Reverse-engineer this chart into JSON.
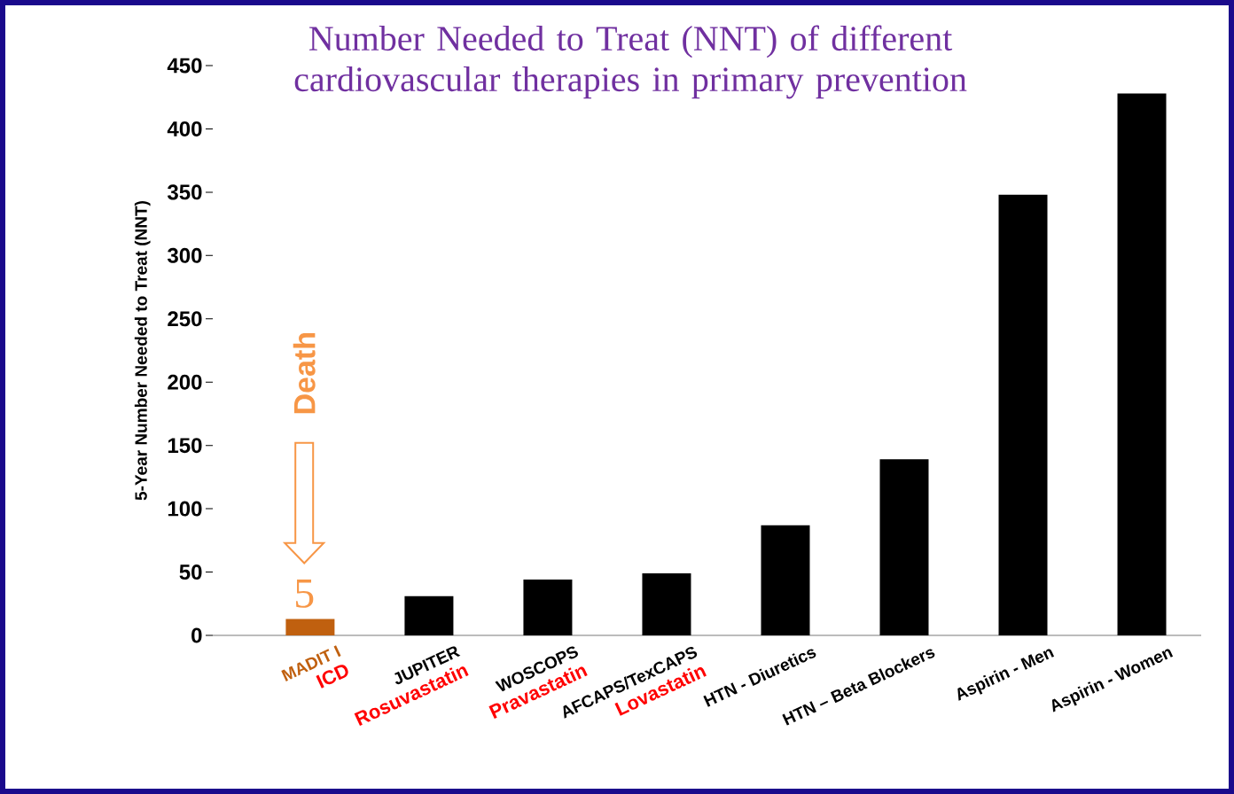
{
  "chart_data": {
    "type": "bar",
    "title": "Number Needed to Treat (NNT) of different cardiovascular therapies in primary prevention",
    "ylabel": "5-Year Number Needed to Treat (NNT)",
    "categories": [
      "MADIT I",
      "JUPITER",
      "WOSCOPS",
      "AFCAPS/TexCAPS",
      "HTN - Diuretics",
      "HTN – Beta Blockers",
      "Aspirin - Men",
      "Aspirin - Women"
    ],
    "values": [
      13,
      31,
      44,
      49,
      87,
      139,
      348,
      428
    ],
    "colors": [
      "#c0600f",
      "#000000",
      "#000000",
      "#000000",
      "#000000",
      "#000000",
      "#000000",
      "#000000"
    ],
    "ylim": [
      0,
      450
    ],
    "yticks": [
      0,
      50,
      100,
      150,
      200,
      250,
      300,
      350,
      400,
      450
    ],
    "annotations": [
      "Death",
      "5",
      "ICD",
      "Rosuvastatin",
      "Pravastatin",
      "Lovastatin"
    ]
  }
}
